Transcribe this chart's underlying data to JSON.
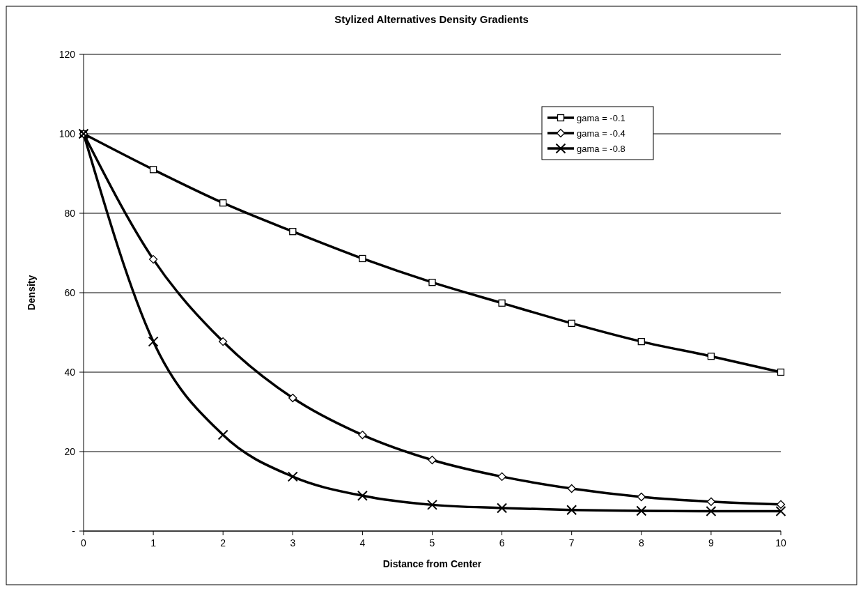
{
  "chart_data": {
    "type": "line",
    "title": "Stylized Alternatives Density Gradients",
    "xlabel": "Distance from Center",
    "ylabel": "Density",
    "x": [
      0,
      1,
      2,
      3,
      4,
      5,
      6,
      7,
      8,
      9,
      10
    ],
    "xlim": [
      0,
      10
    ],
    "xticks": [
      0,
      1,
      2,
      3,
      4,
      5,
      6,
      7,
      8,
      9,
      10
    ],
    "ylim": [
      0,
      120
    ],
    "yticks": [
      {
        "value": 0,
        "label": "-"
      },
      20,
      40,
      60,
      80,
      100,
      120
    ],
    "grid": "y",
    "legend": "top right",
    "series": [
      {
        "name": "gama = -0.1",
        "color": "#000000",
        "marker": "square",
        "values": [
          100,
          91,
          82.6,
          75.4,
          68.6,
          62.6,
          57.4,
          52.3,
          47.7,
          44,
          40
        ]
      },
      {
        "name": "gama = -0.4",
        "color": "#000000",
        "marker": "diamond",
        "values": [
          100,
          68.4,
          47.7,
          33.5,
          24.2,
          17.9,
          13.7,
          10.7,
          8.6,
          7.4,
          6.7
        ]
      },
      {
        "name": "gama = -0.8",
        "color": "#000000",
        "marker": "cross",
        "values": [
          100,
          47.7,
          24.2,
          13.7,
          8.9,
          6.6,
          5.8,
          5.3,
          5.1,
          5,
          5
        ]
      }
    ]
  }
}
